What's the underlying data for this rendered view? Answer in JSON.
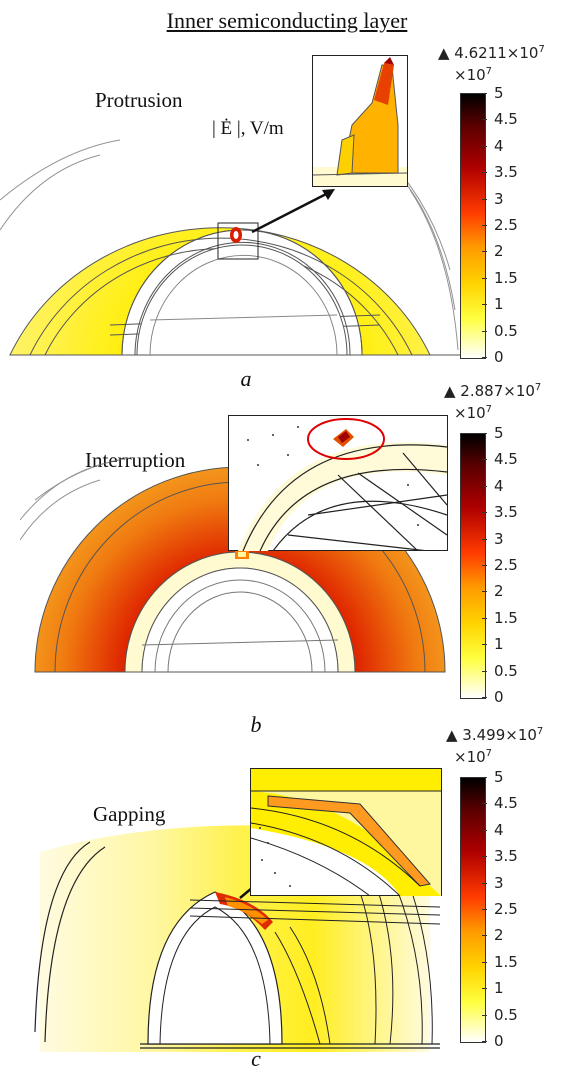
{
  "title": "Inner semiconducting layer",
  "quantity": "| Ė |, V/m",
  "colorbar": {
    "multiplier_base": "×10",
    "multiplier_exp": "7",
    "ticks": [
      "5",
      "4.5",
      "4",
      "3.5",
      "3",
      "2.5",
      "2",
      "1.5",
      "1",
      "0.5",
      "0"
    ]
  },
  "panels": [
    {
      "label": "Protrusion",
      "caption": "a",
      "max_value": "▲ 4.6211×10",
      "max_exp": "7"
    },
    {
      "label": "Interruption",
      "caption": "b",
      "max_value": "▲ 2.887×10",
      "max_exp": "7"
    },
    {
      "label": "Gapping",
      "caption": "c",
      "max_value": "▲ 3.499×10",
      "max_exp": "7"
    }
  ],
  "colors": {
    "yellow": "#ffee00",
    "orange": "#f08a10",
    "red": "#d81e00",
    "dark": "#2a0000"
  }
}
